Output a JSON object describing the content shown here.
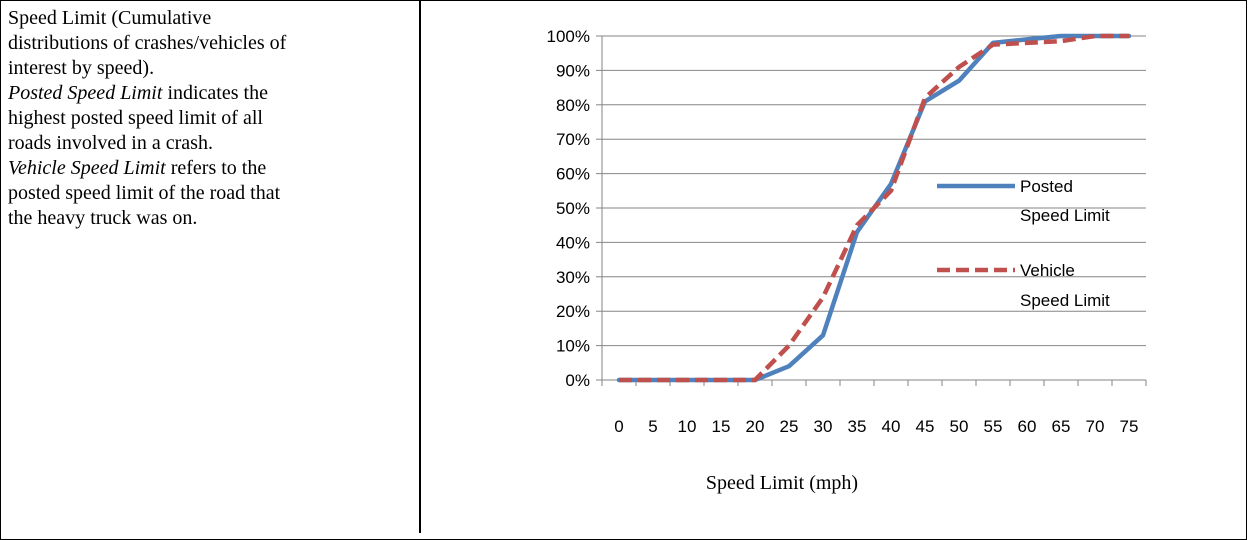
{
  "description": {
    "line1": "Speed Limit (Cumulative",
    "line2": "distributions of crashes/vehicles of",
    "line3": "interest by speed).",
    "posted_term": "Posted Speed Limit",
    "posted_rest1": " indicates the",
    "posted_line2": "highest posted speed limit of all",
    "posted_line3": "roads involved in a crash.",
    "vehicle_term": "Vehicle Speed Limit",
    "vehicle_rest1": " refers to the",
    "vehicle_line2": "posted speed limit of the road that",
    "vehicle_line3": "the heavy truck was on."
  },
  "chart_data": {
    "type": "line",
    "x": [
      0,
      5,
      10,
      15,
      20,
      25,
      30,
      35,
      40,
      45,
      50,
      55,
      60,
      65,
      70,
      75
    ],
    "x_tick_labels": [
      "0",
      "5",
      "10",
      "15",
      "20",
      "25",
      "30",
      "35",
      "40",
      "45",
      "50",
      "55",
      "60",
      "65",
      "70",
      "75"
    ],
    "y_tick_labels": [
      "0%",
      "10%",
      "20%",
      "30%",
      "40%",
      "50%",
      "60%",
      "70%",
      "80%",
      "90%",
      "100%"
    ],
    "xlabel": "Speed Limit (mph)",
    "ylabel": "",
    "ylim": [
      0,
      100
    ],
    "y_unit": "%",
    "grid": "horizontal",
    "legend_position": "right",
    "series": [
      {
        "name_line1": "Posted",
        "name_line2": "Speed Limit",
        "color": "#4F81BD",
        "style": "solid",
        "values": [
          0,
          0,
          0,
          0,
          0,
          4,
          13,
          43,
          57,
          81,
          87,
          98,
          99,
          100,
          100,
          100
        ]
      },
      {
        "name_line1": "Vehicle",
        "name_line2": "Speed Limit",
        "color": "#C0504D",
        "style": "dashed",
        "values": [
          0,
          0,
          0,
          0,
          0,
          10,
          24,
          45,
          55,
          82,
          91,
          97.5,
          98,
          98.5,
          100,
          100
        ]
      }
    ]
  }
}
